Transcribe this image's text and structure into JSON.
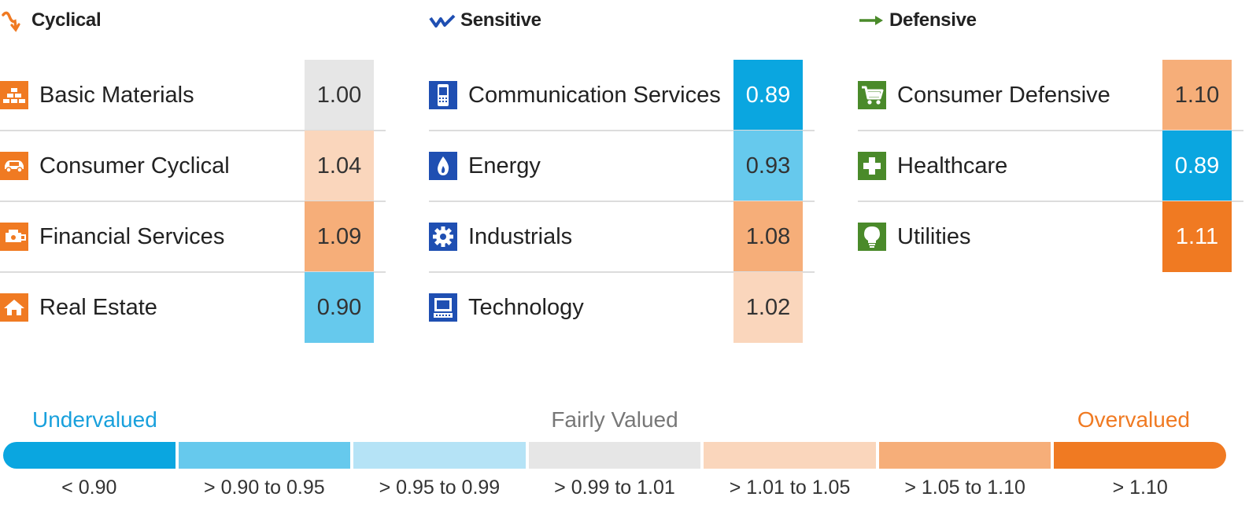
{
  "chart_data": {
    "type": "table",
    "title": "",
    "groups": [
      {
        "name": "Cyclical",
        "icon": "cyclical-arrow-icon",
        "color": "#f07a22",
        "sectors": [
          {
            "name": "Basic Materials",
            "value": "1.00",
            "icon": "basic-materials-icon"
          },
          {
            "name": "Consumer Cyclical",
            "value": "1.04",
            "icon": "car-icon"
          },
          {
            "name": "Financial Services",
            "value": "1.09",
            "icon": "financial-services-icon"
          },
          {
            "name": "Real Estate",
            "value": "0.90",
            "icon": "house-icon"
          }
        ]
      },
      {
        "name": "Sensitive",
        "icon": "sensitive-zigzag-icon",
        "color": "#1f4fb2",
        "sectors": [
          {
            "name": "Communication Services",
            "value": "0.89",
            "icon": "phone-icon"
          },
          {
            "name": "Energy",
            "value": "0.93",
            "icon": "flame-icon"
          },
          {
            "name": "Industrials",
            "value": "1.08",
            "icon": "gear-icon"
          },
          {
            "name": "Technology",
            "value": "1.02",
            "icon": "computer-icon"
          }
        ]
      },
      {
        "name": "Defensive",
        "icon": "defensive-arrow-icon",
        "color": "#4a8a2a",
        "sectors": [
          {
            "name": "Consumer Defensive",
            "value": "1.10",
            "icon": "cart-icon"
          },
          {
            "name": "Healthcare",
            "value": "0.89",
            "icon": "cross-icon"
          },
          {
            "name": "Utilities",
            "value": "1.11",
            "icon": "lightbulb-icon"
          }
        ]
      }
    ],
    "legend": {
      "labels": {
        "under": "Undervalued",
        "fair": "Fairly Valued",
        "over": "Overvalued"
      },
      "label_colors": {
        "under": "#18a0dc",
        "fair": "#777777",
        "over": "#f07a22"
      },
      "buckets": [
        {
          "label": "< 0.90",
          "color": "#0aa6e0"
        },
        {
          "label": "> 0.90 to 0.95",
          "color": "#66c9ed"
        },
        {
          "label": "> 0.95 to 0.99",
          "color": "#b5e3f6"
        },
        {
          "label": "> 0.99 to 1.01",
          "color": "#e6e6e6"
        },
        {
          "label": "> 1.01 to 1.05",
          "color": "#fad6bc"
        },
        {
          "label": "> 1.05 to 1.10",
          "color": "#f6ae79"
        },
        {
          "label": "> 1.10",
          "color": "#f07a22"
        }
      ]
    }
  }
}
